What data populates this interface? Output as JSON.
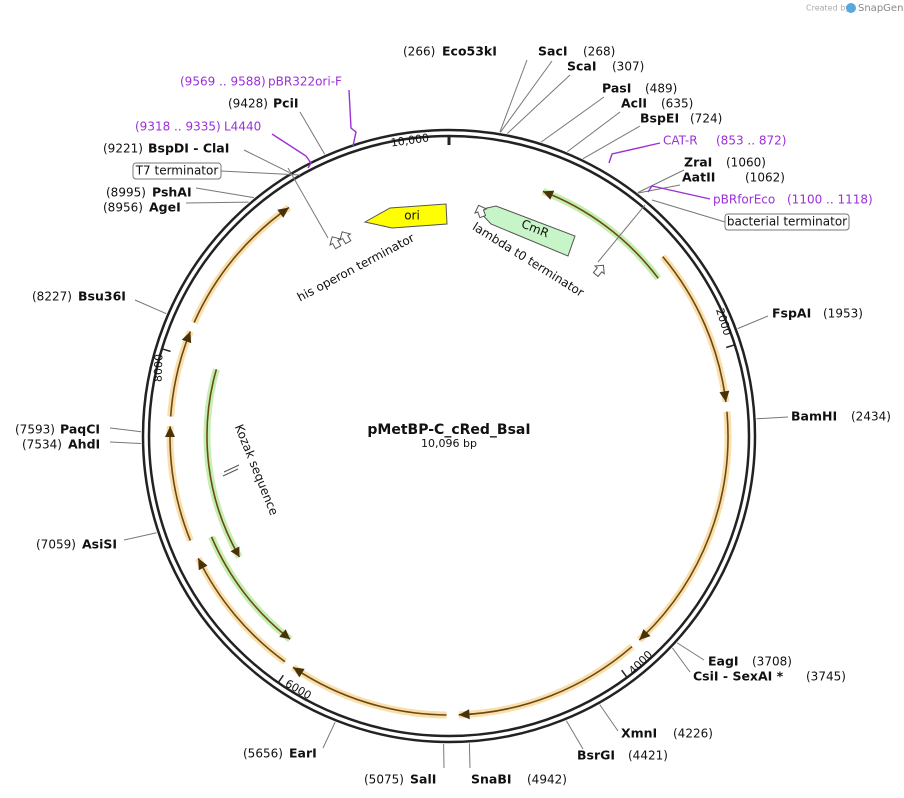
{
  "credit": {
    "prefix": "Created by",
    "brand": "SnapGene"
  },
  "plasmid": {
    "name": "pMetBP-C_cRed_BsaI",
    "length": "10,096 bp"
  },
  "tick_labels": [
    "10,000",
    "2000",
    "4000",
    "6000",
    "8000"
  ],
  "sites": [
    {
      "name": "Eco53kI",
      "position": "(266)"
    },
    {
      "name": "SacI",
      "position": "(268)"
    },
    {
      "name": "ScaI",
      "position": "(307)"
    },
    {
      "name": "PasI",
      "position": "(489)"
    },
    {
      "name": "AclI",
      "position": "(635)"
    },
    {
      "name": "BspEI",
      "position": "(724)"
    },
    {
      "name": "ZraI",
      "position": "(1060)"
    },
    {
      "name": "AatII",
      "position": "(1062)"
    },
    {
      "name": "FspAI",
      "position": "(1953)"
    },
    {
      "name": "BamHI",
      "position": "(2434)"
    },
    {
      "name": "EagI",
      "position": "(3708)"
    },
    {
      "name": "CsiI - SexAI *",
      "position": "(3745)"
    },
    {
      "name": "XmnI",
      "position": "(4226)"
    },
    {
      "name": "BsrGI",
      "position": "(4421)"
    },
    {
      "name": "SnaBI",
      "position": "(4942)"
    },
    {
      "name": "SalI",
      "position": "(5075)"
    },
    {
      "name": "EarI",
      "position": "(5656)"
    },
    {
      "name": "AsiSI",
      "position": "(7059)"
    },
    {
      "name": "AhdI",
      "position": "(7534)"
    },
    {
      "name": "PaqCI",
      "position": "(7593)"
    },
    {
      "name": "Bsu36I",
      "position": "(8227)"
    },
    {
      "name": "AgeI",
      "position": "(8956)"
    },
    {
      "name": "PshAI",
      "position": "(8995)"
    },
    {
      "name": "BspDI - ClaI",
      "position": "(9221)"
    },
    {
      "name": "PciI",
      "position": "(9428)"
    }
  ],
  "primers": [
    {
      "name": "pBR322ori-F",
      "range": "(9569 .. 9588)"
    },
    {
      "name": "L4440",
      "range": "(9318 .. 9335)"
    },
    {
      "name": "CAT-R",
      "range": "(853 .. 872)"
    },
    {
      "name": "pBRforEco",
      "range": "(1100 .. 1118)"
    }
  ],
  "features": [
    {
      "label": "ori"
    },
    {
      "label": "CmR"
    },
    {
      "label": "lambda t0 terminator"
    },
    {
      "label": "his operon terminator"
    },
    {
      "label": "Kozak sequence"
    },
    {
      "label": "T7 terminator"
    },
    {
      "label": "bacterial terminator"
    }
  ]
}
